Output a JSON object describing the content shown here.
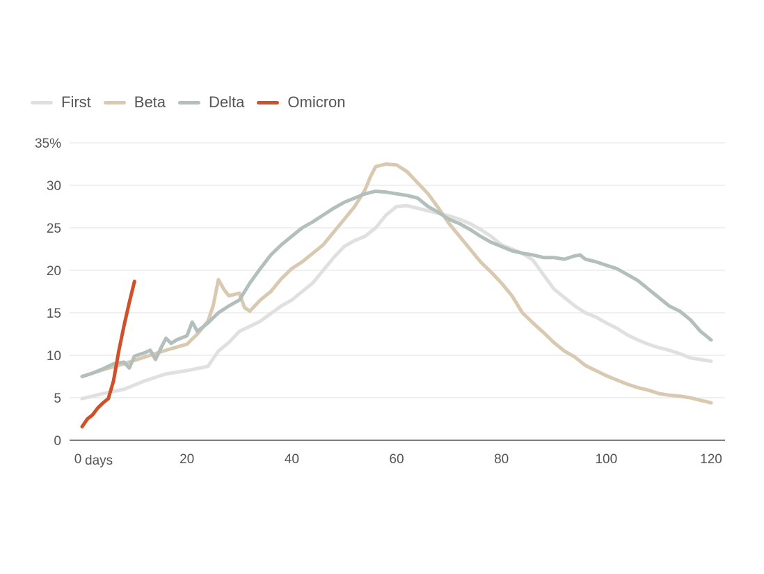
{
  "chart_data": {
    "type": "line",
    "xlim": [
      0,
      120
    ],
    "ylim": [
      0,
      35
    ],
    "x_ticks": [
      "0",
      "20",
      "40",
      "60",
      "80",
      "100",
      "120"
    ],
    "x_unit_label": "days",
    "y_ticks": [
      "0",
      "5",
      "10",
      "15",
      "20",
      "25",
      "30",
      "35%"
    ],
    "grid": true,
    "legend_position": "top-left",
    "series": [
      {
        "name": "First",
        "color": "#e0e0e0",
        "points": [
          [
            0,
            4.9
          ],
          [
            4,
            5.5
          ],
          [
            8,
            6.0
          ],
          [
            12,
            7.0
          ],
          [
            16,
            7.8
          ],
          [
            20,
            8.2
          ],
          [
            24,
            8.7
          ],
          [
            26,
            10.5
          ],
          [
            28,
            11.5
          ],
          [
            30,
            12.8
          ],
          [
            34,
            14.0
          ],
          [
            38,
            15.8
          ],
          [
            40,
            16.5
          ],
          [
            44,
            18.5
          ],
          [
            46,
            20.0
          ],
          [
            48,
            21.5
          ],
          [
            50,
            22.8
          ],
          [
            52,
            23.5
          ],
          [
            54,
            24.0
          ],
          [
            56,
            25.0
          ],
          [
            58,
            26.5
          ],
          [
            60,
            27.5
          ],
          [
            62,
            27.6
          ],
          [
            64,
            27.3
          ],
          [
            66,
            27.0
          ],
          [
            68,
            26.7
          ],
          [
            70,
            26.4
          ],
          [
            72,
            26.0
          ],
          [
            74,
            25.5
          ],
          [
            76,
            24.8
          ],
          [
            78,
            24.0
          ],
          [
            80,
            23.0
          ],
          [
            82,
            22.5
          ],
          [
            84,
            22.0
          ],
          [
            86,
            21.2
          ],
          [
            88,
            19.5
          ],
          [
            90,
            17.8
          ],
          [
            92,
            16.8
          ],
          [
            94,
            15.8
          ],
          [
            96,
            15.0
          ],
          [
            98,
            14.5
          ],
          [
            100,
            13.8
          ],
          [
            102,
            13.2
          ],
          [
            104,
            12.4
          ],
          [
            106,
            11.8
          ],
          [
            108,
            11.3
          ],
          [
            110,
            10.9
          ],
          [
            112,
            10.6
          ],
          [
            114,
            10.2
          ],
          [
            116,
            9.7
          ],
          [
            118,
            9.5
          ],
          [
            120,
            9.3
          ]
        ]
      },
      {
        "name": "Beta",
        "color": "#d8c9b0",
        "points": [
          [
            0,
            7.5
          ],
          [
            4,
            8.3
          ],
          [
            8,
            9.0
          ],
          [
            12,
            9.8
          ],
          [
            16,
            10.6
          ],
          [
            20,
            11.3
          ],
          [
            22,
            12.5
          ],
          [
            24,
            14.0
          ],
          [
            25,
            15.8
          ],
          [
            26,
            18.9
          ],
          [
            27,
            17.8
          ],
          [
            28,
            17.0
          ],
          [
            30,
            17.3
          ],
          [
            31,
            15.6
          ],
          [
            32,
            15.2
          ],
          [
            34,
            16.5
          ],
          [
            36,
            17.5
          ],
          [
            38,
            19.0
          ],
          [
            40,
            20.2
          ],
          [
            42,
            21.0
          ],
          [
            44,
            22.0
          ],
          [
            46,
            23.0
          ],
          [
            48,
            24.5
          ],
          [
            50,
            26.0
          ],
          [
            52,
            27.5
          ],
          [
            54,
            29.5
          ],
          [
            55,
            31.0
          ],
          [
            56,
            32.2
          ],
          [
            58,
            32.5
          ],
          [
            60,
            32.4
          ],
          [
            62,
            31.6
          ],
          [
            64,
            30.3
          ],
          [
            66,
            29.0
          ],
          [
            68,
            27.3
          ],
          [
            70,
            25.5
          ],
          [
            72,
            24.0
          ],
          [
            74,
            22.5
          ],
          [
            76,
            21.0
          ],
          [
            78,
            19.8
          ],
          [
            80,
            18.5
          ],
          [
            82,
            17.0
          ],
          [
            84,
            15.0
          ],
          [
            86,
            13.8
          ],
          [
            88,
            12.7
          ],
          [
            90,
            11.5
          ],
          [
            92,
            10.5
          ],
          [
            94,
            9.8
          ],
          [
            96,
            8.8
          ],
          [
            98,
            8.2
          ],
          [
            100,
            7.6
          ],
          [
            102,
            7.1
          ],
          [
            104,
            6.6
          ],
          [
            106,
            6.2
          ],
          [
            108,
            5.9
          ],
          [
            110,
            5.5
          ],
          [
            112,
            5.3
          ],
          [
            114,
            5.2
          ],
          [
            116,
            5.0
          ],
          [
            118,
            4.7
          ],
          [
            120,
            4.4
          ]
        ]
      },
      {
        "name": "Delta",
        "color": "#b3bfbc",
        "points": [
          [
            0,
            7.5
          ],
          [
            2,
            7.9
          ],
          [
            4,
            8.4
          ],
          [
            6,
            9.0
          ],
          [
            8,
            9.2
          ],
          [
            9,
            8.5
          ],
          [
            10,
            9.9
          ],
          [
            12,
            10.3
          ],
          [
            13,
            10.6
          ],
          [
            14,
            9.5
          ],
          [
            15,
            10.8
          ],
          [
            16,
            12.0
          ],
          [
            17,
            11.4
          ],
          [
            18,
            11.8
          ],
          [
            20,
            12.3
          ],
          [
            21,
            13.9
          ],
          [
            22,
            12.8
          ],
          [
            24,
            13.8
          ],
          [
            26,
            15.0
          ],
          [
            28,
            15.8
          ],
          [
            30,
            16.5
          ],
          [
            32,
            18.5
          ],
          [
            34,
            20.2
          ],
          [
            36,
            21.8
          ],
          [
            38,
            23.0
          ],
          [
            40,
            24.0
          ],
          [
            42,
            25.0
          ],
          [
            44,
            25.7
          ],
          [
            46,
            26.5
          ],
          [
            48,
            27.3
          ],
          [
            50,
            28.0
          ],
          [
            52,
            28.5
          ],
          [
            54,
            29.0
          ],
          [
            56,
            29.3
          ],
          [
            58,
            29.2
          ],
          [
            60,
            29.0
          ],
          [
            62,
            28.8
          ],
          [
            64,
            28.5
          ],
          [
            66,
            27.5
          ],
          [
            68,
            26.8
          ],
          [
            70,
            26.0
          ],
          [
            72,
            25.5
          ],
          [
            74,
            24.8
          ],
          [
            76,
            24.0
          ],
          [
            78,
            23.3
          ],
          [
            80,
            22.8
          ],
          [
            82,
            22.3
          ],
          [
            84,
            22.0
          ],
          [
            86,
            21.8
          ],
          [
            88,
            21.5
          ],
          [
            90,
            21.5
          ],
          [
            92,
            21.3
          ],
          [
            94,
            21.7
          ],
          [
            95,
            21.8
          ],
          [
            96,
            21.3
          ],
          [
            98,
            21.0
          ],
          [
            100,
            20.6
          ],
          [
            102,
            20.2
          ],
          [
            104,
            19.5
          ],
          [
            106,
            18.8
          ],
          [
            108,
            17.8
          ],
          [
            110,
            16.8
          ],
          [
            112,
            15.8
          ],
          [
            114,
            15.2
          ],
          [
            116,
            14.2
          ],
          [
            118,
            12.8
          ],
          [
            120,
            11.8
          ]
        ]
      },
      {
        "name": "Omicron",
        "color": "#d0502a",
        "points": [
          [
            0,
            1.6
          ],
          [
            1,
            2.5
          ],
          [
            2,
            3.0
          ],
          [
            3,
            3.8
          ],
          [
            4,
            4.4
          ],
          [
            5,
            4.9
          ],
          [
            6,
            7.0
          ],
          [
            7,
            10.5
          ],
          [
            8,
            13.5
          ],
          [
            9,
            16.2
          ],
          [
            10,
            18.7
          ]
        ]
      }
    ]
  }
}
